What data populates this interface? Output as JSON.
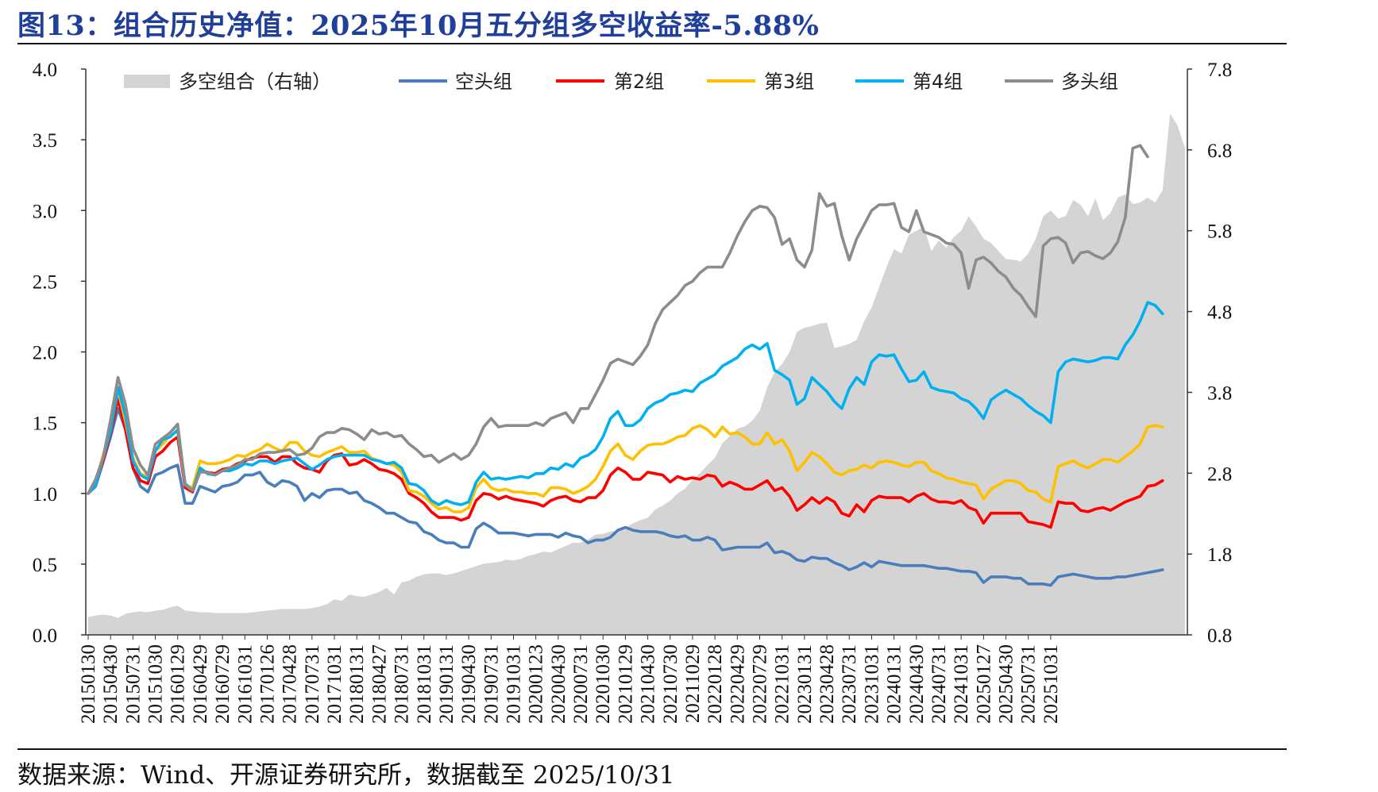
{
  "title": "图13：组合历史净值：2025年10月五分组多空收益率-5.88%",
  "source": "数据来源：Wind、开源证券研究所，数据截至 2025/10/31",
  "chart_data": {
    "type": "line",
    "y_left": {
      "range": [
        0,
        4.0
      ],
      "ticks": [
        "0.0",
        "0.5",
        "1.0",
        "1.5",
        "2.0",
        "2.5",
        "3.0",
        "3.5",
        "4.0"
      ]
    },
    "y_right": {
      "range": [
        0.8,
        7.8
      ],
      "ticks": [
        "0.8",
        "1.8",
        "2.8",
        "3.8",
        "4.8",
        "5.8",
        "6.8",
        "7.8"
      ]
    },
    "x_tick_labels": [
      "20150130",
      "20150430",
      "20150731",
      "20151030",
      "20160129",
      "20160429",
      "20160729",
      "20161031",
      "20170126",
      "20170428",
      "20170731",
      "20171031",
      "20180131",
      "20180427",
      "20180731",
      "20181031",
      "20190131",
      "20190430",
      "20190731",
      "20191031",
      "20200123",
      "20200430",
      "20200731",
      "20201030",
      "20210129",
      "20210430",
      "20210730",
      "20211029",
      "20220128",
      "20220429",
      "20220729",
      "20221031",
      "20230131",
      "20230428",
      "20230731",
      "20231031",
      "20240131",
      "20240430",
      "20240731",
      "20241031",
      "20250127",
      "20250430",
      "20250731",
      "20251031"
    ],
    "legend_position": "top",
    "grid": false,
    "series": [
      {
        "name": "多空组合（右轴）",
        "type": "area",
        "axis": "right",
        "color": "#d4d4d4",
        "values": [
          1.02,
          1.04,
          1.05,
          1.04,
          1.01,
          1.06,
          1.08,
          1.09,
          1.08,
          1.1,
          1.11,
          1.14,
          1.16,
          1.1,
          1.09,
          1.08,
          1.08,
          1.07,
          1.07,
          1.07,
          1.07,
          1.07,
          1.08,
          1.09,
          1.1,
          1.11,
          1.12,
          1.12,
          1.12,
          1.12,
          1.13,
          1.15,
          1.18,
          1.24,
          1.22,
          1.3,
          1.28,
          1.27,
          1.3,
          1.33,
          1.38,
          1.3,
          1.45,
          1.47,
          1.52,
          1.55,
          1.56,
          1.56,
          1.54,
          1.56,
          1.59,
          1.62,
          1.65,
          1.68,
          1.69,
          1.7,
          1.73,
          1.72,
          1.74,
          1.78,
          1.8,
          1.83,
          1.82,
          1.86,
          1.9,
          1.94,
          1.94,
          1.98,
          2.04,
          2.05,
          2.08,
          2.09,
          2.12,
          2.18,
          2.22,
          2.25,
          2.35,
          2.4,
          2.46,
          2.55,
          2.61,
          2.72,
          2.8,
          2.9,
          2.99,
          3.17,
          3.26,
          3.35,
          3.38,
          3.45,
          3.57,
          3.86,
          4.05,
          4.15,
          4.3,
          4.55,
          4.6,
          4.62,
          4.65,
          4.66,
          4.35,
          4.37,
          4.4,
          4.45,
          4.68,
          4.85,
          5.1,
          5.35,
          5.57,
          5.52,
          5.75,
          5.8,
          5.85,
          5.55,
          5.68,
          5.59,
          5.72,
          5.8,
          5.98,
          5.85,
          5.7,
          5.65,
          5.55,
          5.45,
          5.44,
          5.42,
          5.52,
          5.7,
          5.98,
          6.05,
          5.95,
          5.98,
          6.18,
          6.12,
          5.98,
          6.2,
          5.93,
          6.02,
          6.21,
          6.25,
          6.13,
          6.15,
          6.21,
          6.15,
          6.3,
          7.25,
          7.1,
          6.82
        ]
      },
      {
        "name": "空头组",
        "type": "line",
        "axis": "left",
        "color": "#4a7ebb",
        "values": [
          1.0,
          1.05,
          1.22,
          1.4,
          1.6,
          1.45,
          1.18,
          1.05,
          1.01,
          1.13,
          1.15,
          1.18,
          1.2,
          0.93,
          0.93,
          1.05,
          1.03,
          1.01,
          1.05,
          1.06,
          1.08,
          1.13,
          1.13,
          1.15,
          1.08,
          1.05,
          1.09,
          1.08,
          1.05,
          0.95,
          1.0,
          0.97,
          1.02,
          1.03,
          1.03,
          1.0,
          1.01,
          0.95,
          0.93,
          0.9,
          0.86,
          0.86,
          0.83,
          0.8,
          0.79,
          0.73,
          0.71,
          0.67,
          0.65,
          0.65,
          0.62,
          0.62,
          0.75,
          0.79,
          0.76,
          0.72,
          0.72,
          0.72,
          0.71,
          0.7,
          0.71,
          0.71,
          0.71,
          0.69,
          0.72,
          0.7,
          0.69,
          0.65,
          0.67,
          0.67,
          0.69,
          0.74,
          0.76,
          0.74,
          0.73,
          0.73,
          0.73,
          0.72,
          0.7,
          0.69,
          0.7,
          0.67,
          0.67,
          0.69,
          0.67,
          0.6,
          0.61,
          0.62,
          0.62,
          0.62,
          0.62,
          0.65,
          0.58,
          0.59,
          0.57,
          0.53,
          0.52,
          0.55,
          0.54,
          0.54,
          0.51,
          0.49,
          0.46,
          0.48,
          0.51,
          0.48,
          0.52,
          0.51,
          0.5,
          0.49,
          0.49,
          0.49,
          0.49,
          0.48,
          0.47,
          0.47,
          0.46,
          0.45,
          0.45,
          0.44,
          0.37,
          0.41,
          0.41,
          0.41,
          0.4,
          0.4,
          0.36,
          0.36,
          0.36,
          0.35,
          0.41,
          0.42,
          0.43,
          0.42,
          0.41,
          0.4,
          0.4,
          0.4,
          0.41,
          0.41,
          0.42,
          0.43,
          0.44,
          0.45,
          0.46
        ]
      },
      {
        "name": "第2组",
        "type": "line",
        "axis": "left",
        "color": "#ff0000",
        "values": [
          1.0,
          1.07,
          1.23,
          1.42,
          1.67,
          1.45,
          1.18,
          1.09,
          1.07,
          1.26,
          1.3,
          1.36,
          1.4,
          1.04,
          1.01,
          1.16,
          1.15,
          1.14,
          1.17,
          1.18,
          1.21,
          1.23,
          1.25,
          1.26,
          1.26,
          1.22,
          1.26,
          1.26,
          1.21,
          1.18,
          1.17,
          1.15,
          1.23,
          1.27,
          1.28,
          1.2,
          1.21,
          1.24,
          1.21,
          1.17,
          1.16,
          1.14,
          1.1,
          1.0,
          0.97,
          0.93,
          0.87,
          0.83,
          0.83,
          0.83,
          0.81,
          0.83,
          0.95,
          1.0,
          0.99,
          0.96,
          0.98,
          0.96,
          0.95,
          0.94,
          0.93,
          0.91,
          0.95,
          0.97,
          0.98,
          0.95,
          0.94,
          0.97,
          0.97,
          1.02,
          1.13,
          1.18,
          1.15,
          1.1,
          1.1,
          1.15,
          1.14,
          1.13,
          1.08,
          1.12,
          1.1,
          1.11,
          1.1,
          1.13,
          1.12,
          1.05,
          1.08,
          1.06,
          1.03,
          1.03,
          1.06,
          1.09,
          1.02,
          1.04,
          0.98,
          0.88,
          0.92,
          0.97,
          0.93,
          0.97,
          0.94,
          0.86,
          0.84,
          0.92,
          0.87,
          0.95,
          0.98,
          0.97,
          0.97,
          0.97,
          0.94,
          0.98,
          1.0,
          0.96,
          0.94,
          0.94,
          0.93,
          0.95,
          0.9,
          0.88,
          0.79,
          0.86,
          0.86,
          0.86,
          0.86,
          0.86,
          0.8,
          0.79,
          0.78,
          0.76,
          0.94,
          0.93,
          0.93,
          0.88,
          0.87,
          0.89,
          0.9,
          0.88,
          0.91,
          0.94,
          0.96,
          0.98,
          1.05,
          1.06,
          1.09
        ]
      },
      {
        "name": "第3组",
        "type": "line",
        "axis": "left",
        "color": "#ffc000",
        "values": [
          1.0,
          1.08,
          1.27,
          1.46,
          1.73,
          1.51,
          1.25,
          1.14,
          1.12,
          1.3,
          1.35,
          1.41,
          1.44,
          1.06,
          1.04,
          1.23,
          1.21,
          1.21,
          1.22,
          1.24,
          1.27,
          1.26,
          1.29,
          1.31,
          1.35,
          1.32,
          1.3,
          1.36,
          1.36,
          1.3,
          1.27,
          1.26,
          1.29,
          1.31,
          1.33,
          1.29,
          1.29,
          1.3,
          1.25,
          1.23,
          1.21,
          1.2,
          1.15,
          1.02,
          1.01,
          0.98,
          0.93,
          0.89,
          0.9,
          0.87,
          0.87,
          0.9,
          1.04,
          1.1,
          1.04,
          1.02,
          1.03,
          1.01,
          1.01,
          1.0,
          1.0,
          0.98,
          1.04,
          1.04,
          1.03,
          1.0,
          1.02,
          1.05,
          1.1,
          1.19,
          1.3,
          1.35,
          1.27,
          1.24,
          1.3,
          1.34,
          1.35,
          1.35,
          1.37,
          1.4,
          1.41,
          1.46,
          1.48,
          1.45,
          1.4,
          1.47,
          1.42,
          1.43,
          1.4,
          1.35,
          1.35,
          1.43,
          1.35,
          1.38,
          1.3,
          1.16,
          1.22,
          1.29,
          1.26,
          1.21,
          1.15,
          1.13,
          1.16,
          1.17,
          1.2,
          1.18,
          1.22,
          1.23,
          1.22,
          1.2,
          1.19,
          1.22,
          1.22,
          1.16,
          1.14,
          1.11,
          1.1,
          1.08,
          1.07,
          1.06,
          0.96,
          1.03,
          1.06,
          1.09,
          1.09,
          1.07,
          1.02,
          1.01,
          0.96,
          0.94,
          1.19,
          1.21,
          1.23,
          1.2,
          1.18,
          1.21,
          1.24,
          1.24,
          1.22,
          1.26,
          1.3,
          1.35,
          1.47,
          1.48,
          1.47
        ]
      },
      {
        "name": "第4组",
        "type": "line",
        "axis": "left",
        "color": "#00b0f0",
        "values": [
          1.0,
          1.06,
          1.25,
          1.44,
          1.75,
          1.55,
          1.23,
          1.13,
          1.1,
          1.3,
          1.38,
          1.4,
          1.45,
          1.07,
          1.02,
          1.18,
          1.14,
          1.13,
          1.16,
          1.16,
          1.18,
          1.21,
          1.2,
          1.23,
          1.23,
          1.21,
          1.23,
          1.24,
          1.25,
          1.21,
          1.17,
          1.2,
          1.24,
          1.26,
          1.27,
          1.27,
          1.27,
          1.27,
          1.24,
          1.23,
          1.21,
          1.22,
          1.18,
          1.07,
          1.06,
          1.02,
          0.95,
          0.92,
          0.95,
          0.93,
          0.92,
          0.94,
          1.08,
          1.15,
          1.1,
          1.11,
          1.1,
          1.11,
          1.12,
          1.11,
          1.14,
          1.14,
          1.18,
          1.17,
          1.21,
          1.19,
          1.25,
          1.27,
          1.31,
          1.4,
          1.53,
          1.58,
          1.48,
          1.48,
          1.52,
          1.6,
          1.64,
          1.66,
          1.7,
          1.71,
          1.73,
          1.72,
          1.78,
          1.81,
          1.84,
          1.9,
          1.93,
          1.96,
          2.02,
          2.05,
          2.02,
          2.06,
          1.87,
          1.84,
          1.8,
          1.63,
          1.67,
          1.82,
          1.77,
          1.72,
          1.65,
          1.6,
          1.74,
          1.82,
          1.77,
          1.93,
          1.98,
          1.97,
          1.98,
          1.88,
          1.79,
          1.8,
          1.86,
          1.75,
          1.73,
          1.72,
          1.71,
          1.67,
          1.65,
          1.6,
          1.53,
          1.66,
          1.7,
          1.73,
          1.7,
          1.67,
          1.62,
          1.58,
          1.55,
          1.5,
          1.86,
          1.93,
          1.95,
          1.94,
          1.93,
          1.94,
          1.96,
          1.96,
          1.95,
          2.05,
          2.12,
          2.22,
          2.35,
          2.33,
          2.27
        ]
      },
      {
        "name": "多头组",
        "type": "line",
        "axis": "left",
        "color": "#8c8c8c",
        "values": [
          1.0,
          1.1,
          1.25,
          1.52,
          1.82,
          1.63,
          1.32,
          1.2,
          1.13,
          1.35,
          1.39,
          1.43,
          1.49,
          1.06,
          1.02,
          1.15,
          1.15,
          1.13,
          1.16,
          1.18,
          1.2,
          1.24,
          1.24,
          1.28,
          1.29,
          1.29,
          1.3,
          1.31,
          1.27,
          1.28,
          1.32,
          1.4,
          1.43,
          1.43,
          1.46,
          1.45,
          1.42,
          1.38,
          1.45,
          1.42,
          1.43,
          1.4,
          1.41,
          1.35,
          1.31,
          1.26,
          1.27,
          1.22,
          1.25,
          1.28,
          1.24,
          1.27,
          1.35,
          1.47,
          1.53,
          1.47,
          1.48,
          1.48,
          1.48,
          1.48,
          1.5,
          1.48,
          1.53,
          1.55,
          1.57,
          1.5,
          1.6,
          1.6,
          1.7,
          1.8,
          1.92,
          1.95,
          1.93,
          1.91,
          1.97,
          2.05,
          2.2,
          2.3,
          2.35,
          2.4,
          2.47,
          2.5,
          2.56,
          2.6,
          2.6,
          2.6,
          2.7,
          2.82,
          2.92,
          3.0,
          3.03,
          3.02,
          2.95,
          2.76,
          2.8,
          2.65,
          2.6,
          2.72,
          3.12,
          3.03,
          3.05,
          2.82,
          2.65,
          2.8,
          2.9,
          3.0,
          3.04,
          3.04,
          3.05,
          2.88,
          2.85,
          3.0,
          2.85,
          2.83,
          2.81,
          2.77,
          2.76,
          2.7,
          2.45,
          2.65,
          2.67,
          2.63,
          2.57,
          2.53,
          2.45,
          2.4,
          2.32,
          2.25,
          2.75,
          2.8,
          2.81,
          2.77,
          2.63,
          2.7,
          2.71,
          2.68,
          2.66,
          2.7,
          2.78,
          2.95,
          3.44,
          3.46,
          3.38
        ]
      }
    ]
  }
}
